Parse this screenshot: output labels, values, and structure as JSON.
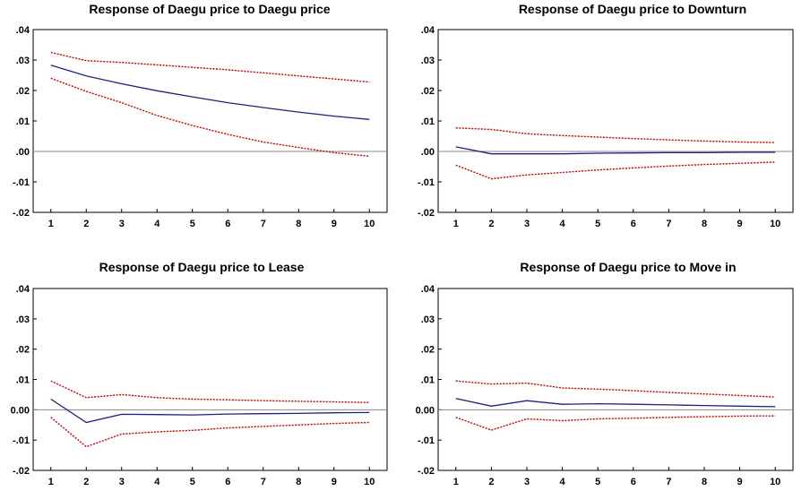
{
  "chart_data": [
    {
      "type": "line",
      "title": "Response of Daegu price to Daegu price",
      "x": [
        1,
        2,
        3,
        4,
        5,
        6,
        7,
        8,
        9,
        10
      ],
      "ylim": [
        -0.02,
        0.04
      ],
      "yticks": [
        ".04",
        ".03",
        ".02",
        ".01",
        ".00",
        "-.01",
        "-.02"
      ],
      "xticks": [
        "1",
        "2",
        "3",
        "4",
        "5",
        "6",
        "7",
        "8",
        "9",
        "10"
      ],
      "zero_line": true,
      "series": [
        {
          "values": [
            0.0283,
            0.0248,
            0.0222,
            0.0199,
            0.0179,
            0.016,
            0.0144,
            0.0129,
            0.0116,
            0.0105
          ],
          "color": "#1a237e",
          "style": "solid"
        },
        {
          "values": [
            0.0325,
            0.0298,
            0.0292,
            0.0284,
            0.0276,
            0.0268,
            0.0258,
            0.0248,
            0.0238,
            0.0228
          ],
          "color": "#cc0000",
          "style": "dotted"
        },
        {
          "values": [
            0.024,
            0.0197,
            0.016,
            0.0118,
            0.0085,
            0.0056,
            0.0031,
            0.0013,
            -0.0004,
            -0.0016
          ],
          "color": "#cc0000",
          "style": "dotted"
        }
      ]
    },
    {
      "type": "line",
      "title": "Response of Daegu price to Downturn",
      "x": [
        1,
        2,
        3,
        4,
        5,
        6,
        7,
        8,
        9,
        10
      ],
      "ylim": [
        -0.02,
        0.04
      ],
      "yticks": [
        ".04",
        ".03",
        ".02",
        ".01",
        ".00",
        "-.01",
        "-.02"
      ],
      "xticks": [
        "1",
        "2",
        "3",
        "4",
        "5",
        "6",
        "7",
        "8",
        "9",
        "10"
      ],
      "zero_line": true,
      "series": [
        {
          "values": [
            0.0015,
            -0.0008,
            -0.0008,
            -0.0008,
            -0.0006,
            -0.0005,
            -0.0004,
            -0.0004,
            -0.0003,
            -0.0003
          ],
          "color": "#1a237e",
          "style": "solid"
        },
        {
          "values": [
            0.0077,
            0.0072,
            0.0058,
            0.0052,
            0.0047,
            0.0042,
            0.0038,
            0.0034,
            0.0031,
            0.0029
          ],
          "color": "#cc0000",
          "style": "dotted"
        },
        {
          "values": [
            -0.0045,
            -0.009,
            -0.0077,
            -0.0069,
            -0.0061,
            -0.0054,
            -0.0048,
            -0.0043,
            -0.0039,
            -0.0035
          ],
          "color": "#cc0000",
          "style": "dotted"
        }
      ]
    },
    {
      "type": "line",
      "title": "Response of Daegu price to Lease",
      "x": [
        1,
        2,
        3,
        4,
        5,
        6,
        7,
        8,
        9,
        10
      ],
      "ylim": [
        -0.02,
        0.04
      ],
      "yticks": [
        ".04",
        ".03",
        ".02",
        ".01",
        "0.00",
        "-.01",
        "-.02"
      ],
      "xticks": [
        "1",
        "2",
        "3",
        "4",
        "5",
        "6",
        "7",
        "8",
        "9",
        "10"
      ],
      "zero_line": true,
      "series": [
        {
          "values": [
            0.0035,
            -0.0042,
            -0.0015,
            -0.0016,
            -0.0017,
            -0.0014,
            -0.0013,
            -0.0012,
            -0.001,
            -0.0009
          ],
          "color": "#1a237e",
          "style": "solid"
        },
        {
          "values": [
            0.0095,
            0.004,
            0.005,
            0.004,
            0.0035,
            0.0033,
            0.003,
            0.0028,
            0.0026,
            0.0024
          ],
          "color": "#cc0000",
          "style": "dotted"
        },
        {
          "values": [
            -0.0025,
            -0.0122,
            -0.008,
            -0.0073,
            -0.0068,
            -0.006,
            -0.0055,
            -0.005,
            -0.0045,
            -0.0042
          ],
          "color": "#cc0000",
          "style": "dotted"
        }
      ]
    },
    {
      "type": "line",
      "title": "Response of Daegu price to Move in",
      "x": [
        1,
        2,
        3,
        4,
        5,
        6,
        7,
        8,
        9,
        10
      ],
      "ylim": [
        -0.02,
        0.04
      ],
      "yticks": [
        ".04",
        ".03",
        ".02",
        ".01",
        "0.00",
        "-.01",
        "-.02"
      ],
      "xticks": [
        "1",
        "2",
        "3",
        "4",
        "5",
        "6",
        "7",
        "8",
        "9",
        "10"
      ],
      "zero_line": true,
      "series": [
        {
          "values": [
            0.0037,
            0.0012,
            0.003,
            0.0018,
            0.002,
            0.0018,
            0.0016,
            0.0014,
            0.0012,
            0.001
          ],
          "color": "#1a237e",
          "style": "solid"
        },
        {
          "values": [
            0.0095,
            0.0085,
            0.0088,
            0.0072,
            0.0068,
            0.0063,
            0.0057,
            0.0052,
            0.0047,
            0.0042
          ],
          "color": "#cc0000",
          "style": "dotted"
        },
        {
          "values": [
            -0.0025,
            -0.0067,
            -0.003,
            -0.0036,
            -0.003,
            -0.0028,
            -0.0025,
            -0.0023,
            -0.0021,
            -0.002
          ],
          "color": "#cc0000",
          "style": "dotted"
        }
      ]
    }
  ]
}
